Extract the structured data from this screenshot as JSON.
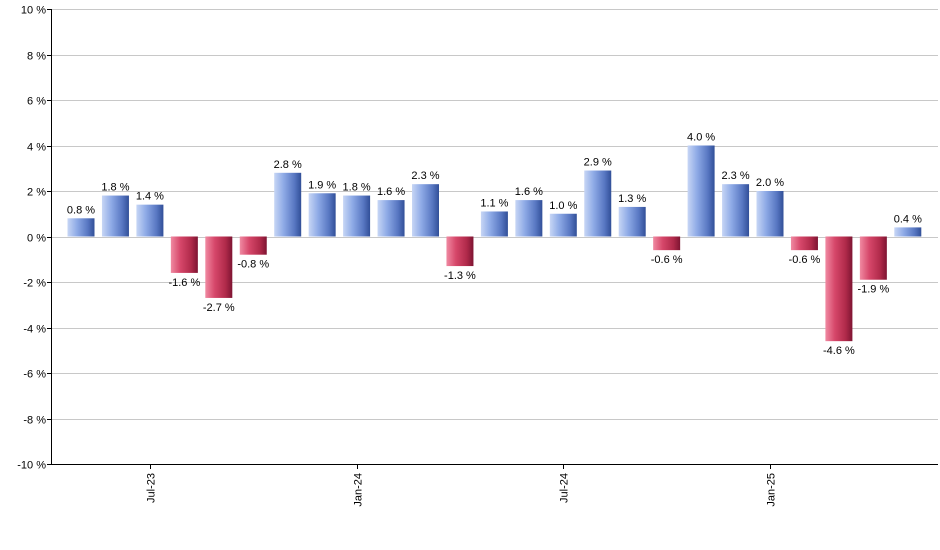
{
  "chart_data": {
    "type": "bar",
    "title": "",
    "xlabel": "",
    "ylabel": "",
    "ylim": [
      -10,
      10
    ],
    "y_ticks": [
      10,
      8,
      6,
      4,
      2,
      0,
      -2,
      -4,
      -6,
      -8,
      -10
    ],
    "y_tick_labels": [
      "10 %",
      "8 %",
      "6 %",
      "4 %",
      "2 %",
      "0 %",
      "-2 %",
      "-4 %",
      "-6 %",
      "-8 %",
      "-10 %"
    ],
    "x_tick_labels": [
      {
        "label": "Jul-23",
        "index": 2
      },
      {
        "label": "Jan-24",
        "index": 8
      },
      {
        "label": "Jul-24",
        "index": 14
      },
      {
        "label": "Jan-25",
        "index": 20
      }
    ],
    "values": [
      0.8,
      1.8,
      1.4,
      -1.6,
      -2.7,
      -0.8,
      2.8,
      1.9,
      1.8,
      1.6,
      2.3,
      -1.3,
      1.1,
      1.6,
      1.0,
      2.9,
      1.3,
      -0.6,
      4.0,
      2.3,
      2.0,
      -0.6,
      -4.6,
      -1.9,
      0.4
    ],
    "value_labels": [
      "0.8 %",
      "1.8 %",
      "1.4 %",
      "-1.6 %",
      "-2.7 %",
      "-0.8 %",
      "2.8 %",
      "1.9 %",
      "1.8 %",
      "1.6 %",
      "2.3 %",
      "-1.3 %",
      "1.1 %",
      "1.6 %",
      "1.0 %",
      "2.9 %",
      "1.3 %",
      "-0.6 %",
      "4.0 %",
      "2.3 %",
      "2.0 %",
      "-0.6 %",
      "-4.6 %",
      "-1.9 %",
      "0.4 %"
    ],
    "grid": true,
    "colors": {
      "positive": "#7b9de0",
      "negative": "#c8405c"
    }
  }
}
